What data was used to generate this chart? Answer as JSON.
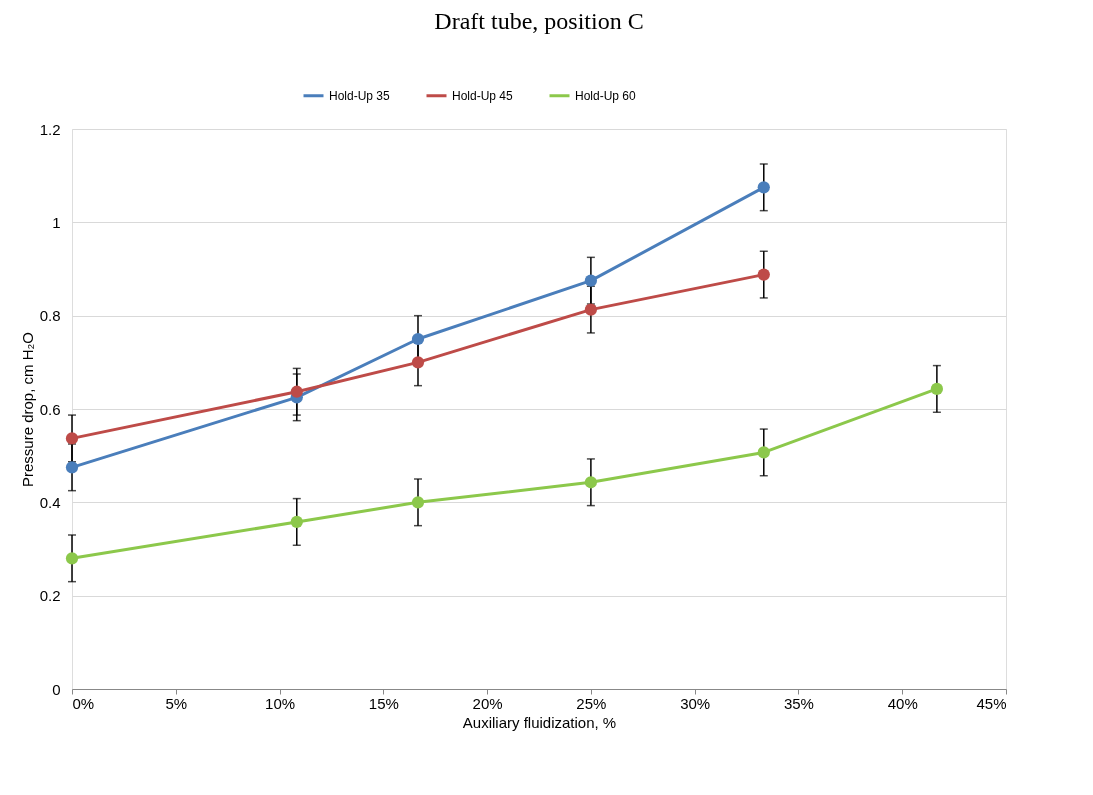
{
  "chart_data": {
    "type": "line",
    "title": "Draft tube, position C",
    "xlabel": "Auxiliary fluidization, %",
    "ylabel": "Pressure drop, cm H₂O",
    "x": [
      0,
      10.83,
      16.67,
      25,
      33.33,
      41.67
    ],
    "series": [
      {
        "name": "Hold-Up 35",
        "color": "#4a7ebb",
        "values": [
          0.475,
          0.625,
          0.75,
          0.875,
          1.075,
          null
        ],
        "errors": [
          0.05,
          0.05,
          0.05,
          0.05,
          0.05,
          null
        ]
      },
      {
        "name": "Hold-Up 45",
        "color": "#be4b48",
        "values": [
          0.537,
          0.637,
          0.7,
          0.813,
          0.888,
          null
        ],
        "errors": [
          0.05,
          0.05,
          0.05,
          0.05,
          0.05,
          null
        ]
      },
      {
        "name": "Hold-Up 60",
        "color": "#8cc84b",
        "values": [
          0.28,
          0.358,
          0.4,
          0.443,
          0.507,
          0.643
        ],
        "errors": [
          0.05,
          0.05,
          0.05,
          0.05,
          0.05,
          0.05
        ]
      }
    ],
    "xlim": [
      0,
      45
    ],
    "xticks": [
      {
        "value": 0,
        "label": "0%"
      },
      {
        "value": 5,
        "label": "5%"
      },
      {
        "value": 10,
        "label": "10%"
      },
      {
        "value": 15,
        "label": "15%"
      },
      {
        "value": 20,
        "label": "20%"
      },
      {
        "value": 25,
        "label": "25%"
      },
      {
        "value": 30,
        "label": "30%"
      },
      {
        "value": 35,
        "label": "35%"
      },
      {
        "value": 40,
        "label": "40%"
      },
      {
        "value": 45,
        "label": "45%"
      }
    ],
    "ylim": [
      0,
      1.2
    ],
    "yticks": [
      0,
      0.2,
      0.4,
      0.6,
      0.8,
      1,
      1.2
    ],
    "grid": "y",
    "legend": "top",
    "marker": "circle",
    "line_style": "solid"
  }
}
